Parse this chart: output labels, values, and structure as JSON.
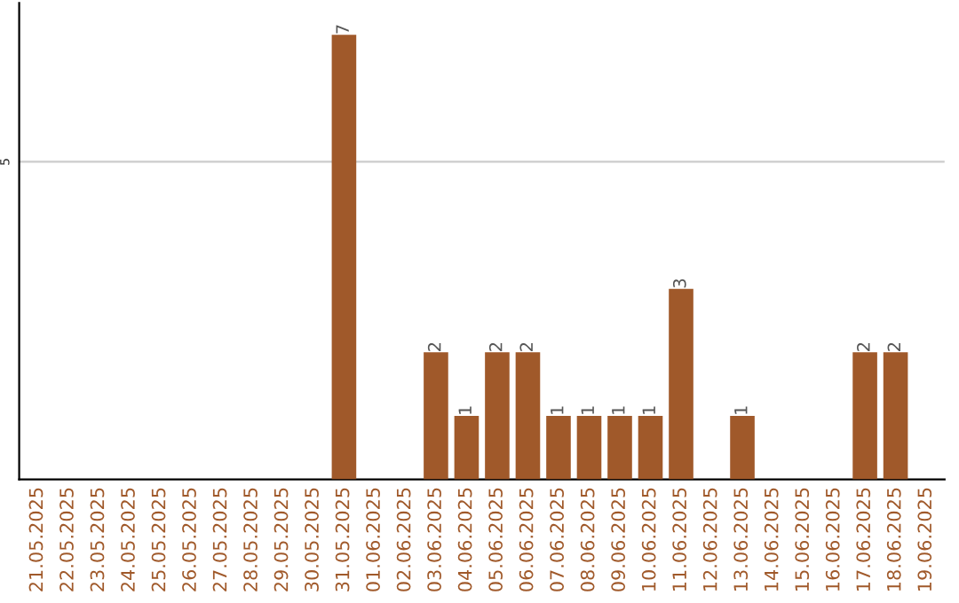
{
  "chart_data": {
    "type": "bar",
    "categories": [
      "21.05.2025",
      "22.05.2025",
      "23.05.2025",
      "24.05.2025",
      "25.05.2025",
      "26.05.2025",
      "27.05.2025",
      "28.05.2025",
      "29.05.2025",
      "30.05.2025",
      "31.05.2025",
      "01.06.2025",
      "02.06.2025",
      "03.06.2025",
      "04.06.2025",
      "05.06.2025",
      "06.06.2025",
      "07.06.2025",
      "08.06.2025",
      "09.06.2025",
      "10.06.2025",
      "11.06.2025",
      "12.06.2025",
      "13.06.2025",
      "14.06.2025",
      "15.06.2025",
      "16.06.2025",
      "17.06.2025",
      "18.06.2025",
      "19.06.2025"
    ],
    "values": [
      0,
      0,
      0,
      0,
      0,
      0,
      0,
      0,
      0,
      0,
      7,
      0,
      0,
      2,
      1,
      2,
      2,
      1,
      1,
      1,
      1,
      3,
      0,
      1,
      0,
      0,
      0,
      2,
      2,
      0
    ],
    "value_labels": [
      null,
      null,
      null,
      null,
      null,
      null,
      null,
      null,
      null,
      null,
      "7",
      null,
      null,
      "2",
      "1",
      "2",
      "2",
      "1",
      "1",
      "1",
      "1",
      "3",
      null,
      "1",
      null,
      null,
      null,
      "2",
      "2",
      null
    ],
    "color": "#a0592a",
    "ylim": [
      0,
      7.5
    ],
    "yticks": [
      5
    ],
    "grid": "y"
  }
}
